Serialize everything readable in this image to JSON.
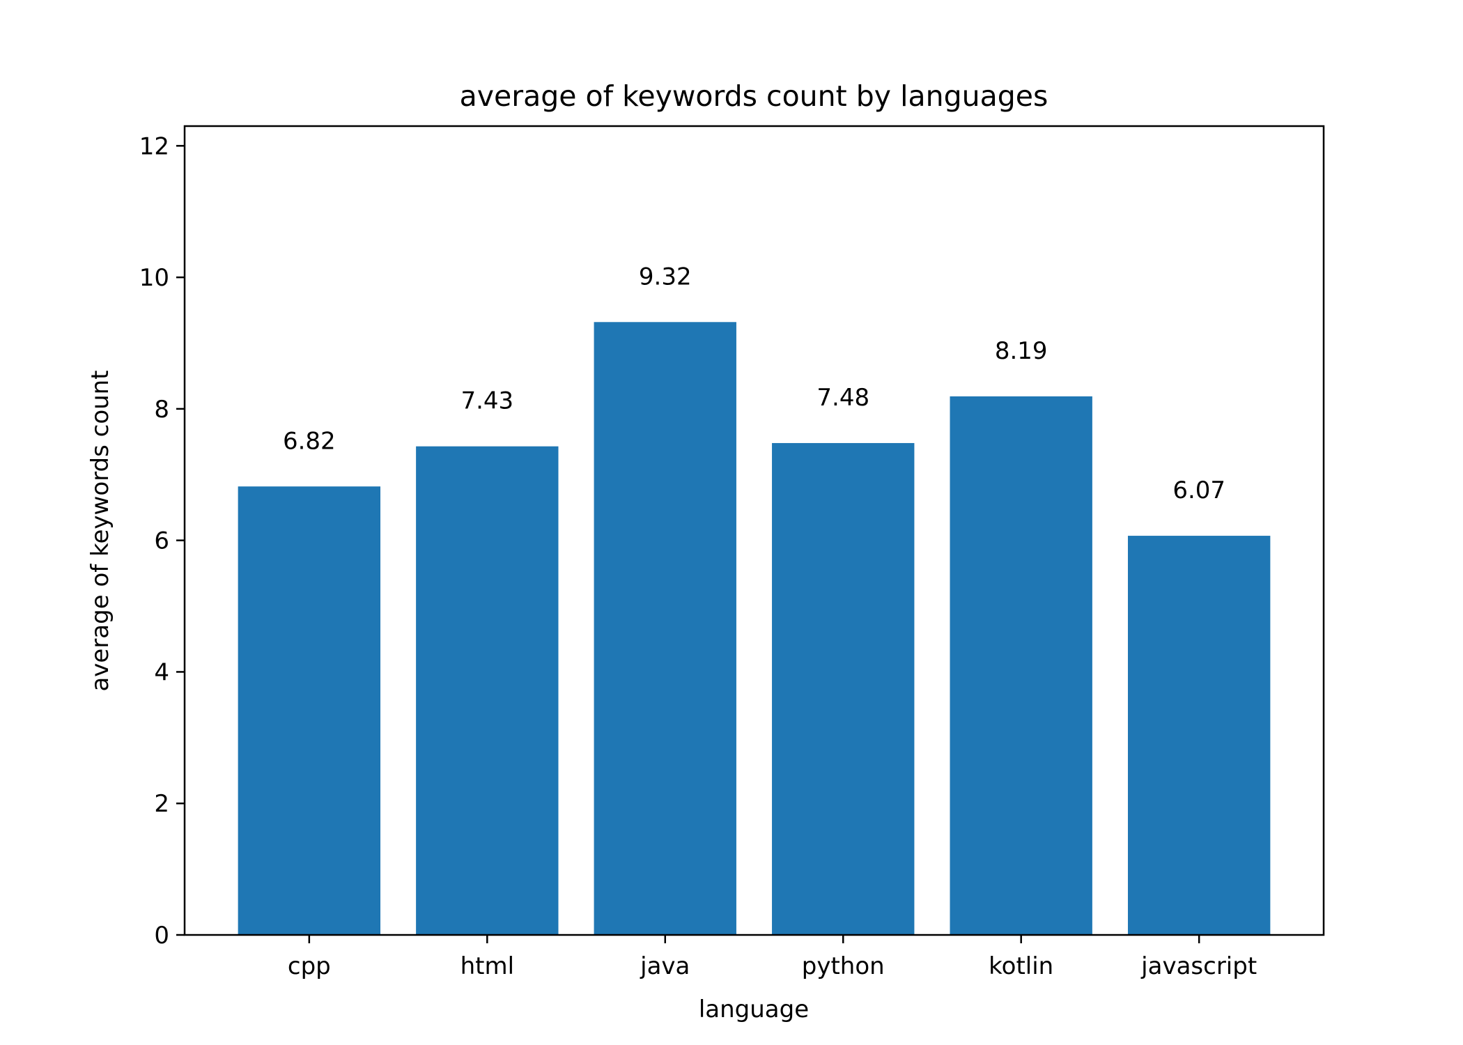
{
  "chart_data": {
    "type": "bar",
    "title": "average of keywords count by languages",
    "xlabel": "language",
    "ylabel": "average of keywords count",
    "categories": [
      "cpp",
      "html",
      "java",
      "python",
      "kotlin",
      "javascript"
    ],
    "values": [
      6.82,
      7.43,
      9.32,
      7.48,
      8.19,
      6.07
    ],
    "value_labels": [
      "6.82",
      "7.43",
      "9.32",
      "7.48",
      "8.19",
      "6.07"
    ],
    "ylim": [
      0,
      12.3
    ],
    "yticks": [
      0,
      2,
      4,
      6,
      8,
      10,
      12
    ],
    "ytick_labels": [
      "0",
      "2",
      "4",
      "6",
      "8",
      "10",
      "12"
    ],
    "grid": false,
    "legend": "none",
    "bar_color": "#1f77b4"
  }
}
